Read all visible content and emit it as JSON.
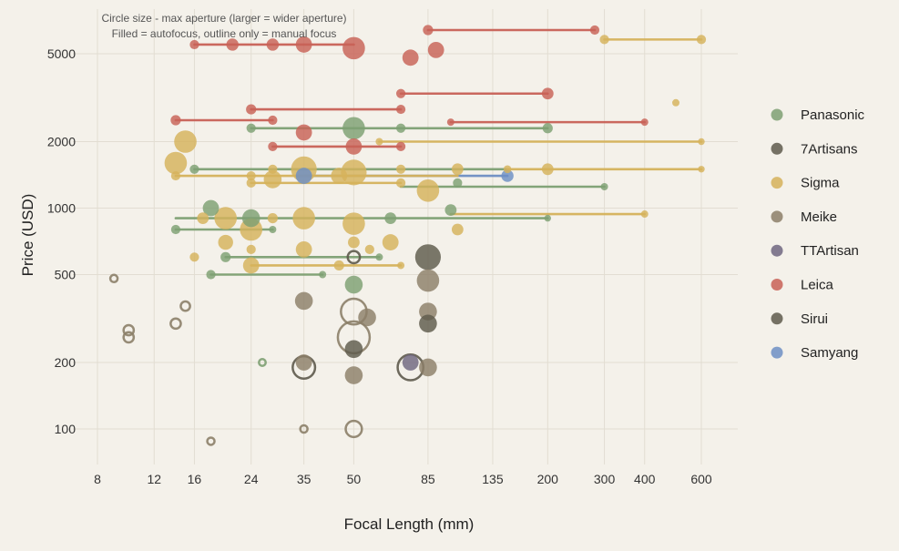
{
  "chart_data": {
    "type": "scatter",
    "title": "",
    "xlabel": "Focal Length (mm)",
    "ylabel": "Price (USD)",
    "x_scale": "log",
    "y_scale": "log",
    "xlim": [
      6.9,
      780
    ],
    "ylim": [
      70,
      8000
    ],
    "x_ticks": [
      8,
      12,
      16,
      24,
      35,
      50,
      85,
      135,
      200,
      300,
      400,
      600
    ],
    "x_tick_labels": [
      "8",
      "12",
      "16",
      "24",
      "35",
      "50",
      "85",
      "135",
      "200",
      "300",
      "400",
      "600"
    ],
    "y_ticks": [
      100,
      200,
      500,
      1000,
      2000,
      5000
    ],
    "y_tick_labels": [
      "100",
      "200",
      "500",
      "1000",
      "2000",
      "5000"
    ],
    "annotation": [
      "Circle size - max aperture (larger = wider aperture)",
      "Filled = autofocus, outline only = manual focus"
    ],
    "legend": {
      "position": "right",
      "entries": [
        {
          "label": "Panasonic",
          "color": "#7ea073"
        },
        {
          "label": "7Artisans",
          "color": "#5e5a4c"
        },
        {
          "label": "Sigma",
          "color": "#d5b25b"
        },
        {
          "label": "Meike",
          "color": "#8c7f69"
        },
        {
          "label": "TTArtisan",
          "color": "#6f6680"
        },
        {
          "label": "Leica",
          "color": "#c86157"
        },
        {
          "label": "Sirui",
          "color": "#5e5a4c"
        },
        {
          "label": "Samyang",
          "color": "#6d8fc4"
        }
      ]
    },
    "zooms": [
      {
        "brand": "Leica",
        "x1": 16,
        "x2": 50,
        "y": 5500
      },
      {
        "brand": "Leica",
        "x1": 85,
        "x2": 280,
        "y": 6400
      },
      {
        "brand": "Sigma",
        "x1": 300,
        "x2": 600,
        "y": 5800
      },
      {
        "brand": "Leica",
        "x1": 70,
        "x2": 200,
        "y": 3300
      },
      {
        "brand": "Leica",
        "x1": 24,
        "x2": 70,
        "y": 2800
      },
      {
        "brand": "Leica",
        "x1": 14,
        "x2": 28,
        "y": 2500
      },
      {
        "brand": "Leica",
        "x1": 100,
        "x2": 400,
        "y": 2450
      },
      {
        "brand": "Panasonic",
        "x1": 24,
        "x2": 200,
        "y": 2300
      },
      {
        "brand": "Sigma",
        "x1": 60,
        "x2": 600,
        "y": 2000
      },
      {
        "brand": "Leica",
        "x1": 28,
        "x2": 70,
        "y": 1900
      },
      {
        "brand": "Panasonic",
        "x1": 16,
        "x2": 150,
        "y": 1500
      },
      {
        "brand": "Sigma",
        "x1": 150,
        "x2": 600,
        "y": 1500
      },
      {
        "brand": "Samyang",
        "x1": 35,
        "x2": 150,
        "y": 1400
      },
      {
        "brand": "Sigma",
        "x1": 14,
        "x2": 105,
        "y": 1400
      },
      {
        "brand": "Sigma",
        "x1": 24,
        "x2": 70,
        "y": 1300
      },
      {
        "brand": "Panasonic",
        "x1": 70,
        "x2": 300,
        "y": 1250
      },
      {
        "brand": "Sigma",
        "x1": 100,
        "x2": 400,
        "y": 940
      },
      {
        "brand": "Panasonic",
        "x1": 14,
        "x2": 200,
        "y": 900
      },
      {
        "brand": "Panasonic",
        "x1": 14,
        "x2": 28,
        "y": 800
      },
      {
        "brand": "Panasonic",
        "x1": 20,
        "x2": 60,
        "y": 600
      },
      {
        "brand": "Sigma",
        "x1": 24,
        "x2": 70,
        "y": 550
      },
      {
        "brand": "Panasonic",
        "x1": 18,
        "x2": 40,
        "y": 500
      }
    ],
    "points": [
      {
        "brand": "Leica",
        "x": 16,
        "y": 5500,
        "ap": 4,
        "af": true
      },
      {
        "brand": "Leica",
        "x": 21,
        "y": 5500,
        "ap": 2.8,
        "af": true
      },
      {
        "brand": "Leica",
        "x": 28,
        "y": 5500,
        "ap": 2.8,
        "af": true
      },
      {
        "brand": "Leica",
        "x": 35,
        "y": 5500,
        "ap": 2,
        "af": true
      },
      {
        "brand": "Leica",
        "x": 50,
        "y": 5300,
        "ap": 1.4,
        "af": true
      },
      {
        "brand": "Leica",
        "x": 75,
        "y": 4800,
        "ap": 2,
        "af": true
      },
      {
        "brand": "Leica",
        "x": 90,
        "y": 5200,
        "ap": 2,
        "af": true
      },
      {
        "brand": "Leica",
        "x": 85,
        "y": 6400,
        "ap": 3.5,
        "af": true
      },
      {
        "brand": "Leica",
        "x": 280,
        "y": 6400,
        "ap": 4,
        "af": true
      },
      {
        "brand": "Sigma",
        "x": 300,
        "y": 5800,
        "ap": 4,
        "af": true
      },
      {
        "brand": "Sigma",
        "x": 600,
        "y": 5800,
        "ap": 4,
        "af": true
      },
      {
        "brand": "Leica",
        "x": 70,
        "y": 3300,
        "ap": 4,
        "af": true
      },
      {
        "brand": "Leica",
        "x": 200,
        "y": 3300,
        "ap": 3,
        "af": true
      },
      {
        "brand": "Sigma",
        "x": 500,
        "y": 3000,
        "ap": 5.6,
        "af": true
      },
      {
        "brand": "Leica",
        "x": 24,
        "y": 2800,
        "ap": 3.5,
        "af": true
      },
      {
        "brand": "Leica",
        "x": 70,
        "y": 2800,
        "ap": 4,
        "af": true
      },
      {
        "brand": "Leica",
        "x": 14,
        "y": 2500,
        "ap": 3.5,
        "af": true
      },
      {
        "brand": "Leica",
        "x": 28,
        "y": 2500,
        "ap": 4,
        "af": true
      },
      {
        "brand": "Leica",
        "x": 100,
        "y": 2450,
        "ap": 5.6,
        "af": true
      },
      {
        "brand": "Leica",
        "x": 400,
        "y": 2450,
        "ap": 5.6,
        "af": true
      },
      {
        "brand": "Panasonic",
        "x": 24,
        "y": 2300,
        "ap": 4,
        "af": true
      },
      {
        "brand": "Panasonic",
        "x": 50,
        "y": 2300,
        "ap": 1.4,
        "af": true
      },
      {
        "brand": "Panasonic",
        "x": 70,
        "y": 2300,
        "ap": 4,
        "af": true
      },
      {
        "brand": "Panasonic",
        "x": 200,
        "y": 2300,
        "ap": 3.5,
        "af": true
      },
      {
        "brand": "Leica",
        "x": 35,
        "y": 2200,
        "ap": 2,
        "af": true
      },
      {
        "brand": "Sigma",
        "x": 15,
        "y": 2000,
        "ap": 1.4,
        "af": true
      },
      {
        "brand": "Sigma",
        "x": 60,
        "y": 2000,
        "ap": 5.6,
        "af": true
      },
      {
        "brand": "Sigma",
        "x": 600,
        "y": 2000,
        "ap": 6.3,
        "af": true
      },
      {
        "brand": "Leica",
        "x": 28,
        "y": 1900,
        "ap": 4,
        "af": true
      },
      {
        "brand": "Leica",
        "x": 50,
        "y": 1900,
        "ap": 2,
        "af": true
      },
      {
        "brand": "Leica",
        "x": 70,
        "y": 1900,
        "ap": 4,
        "af": true
      },
      {
        "brand": "Sigma",
        "x": 14,
        "y": 1600,
        "ap": 1.4,
        "af": true
      },
      {
        "brand": "Sigma",
        "x": 35,
        "y": 1500,
        "ap": 1.2,
        "af": true
      },
      {
        "brand": "Sigma",
        "x": 50,
        "y": 1450,
        "ap": 1.2,
        "af": true
      },
      {
        "brand": "Panasonic",
        "x": 16,
        "y": 1500,
        "ap": 4,
        "af": true
      },
      {
        "brand": "Sigma",
        "x": 28,
        "y": 1500,
        "ap": 4,
        "af": true
      },
      {
        "brand": "Sigma",
        "x": 70,
        "y": 1500,
        "ap": 4,
        "af": true
      },
      {
        "brand": "Sigma",
        "x": 105,
        "y": 1500,
        "ap": 3,
        "af": true
      },
      {
        "brand": "Sigma",
        "x": 150,
        "y": 1500,
        "ap": 5,
        "af": true
      },
      {
        "brand": "Sigma",
        "x": 200,
        "y": 1500,
        "ap": 3,
        "af": true
      },
      {
        "brand": "Sigma",
        "x": 600,
        "y": 1500,
        "ap": 6.3,
        "af": true
      },
      {
        "brand": "Samyang",
        "x": 35,
        "y": 1400,
        "ap": 2,
        "af": true
      },
      {
        "brand": "Samyang",
        "x": 150,
        "y": 1400,
        "ap": 2.8,
        "af": true
      },
      {
        "brand": "Sigma",
        "x": 14,
        "y": 1400,
        "ap": 4,
        "af": true
      },
      {
        "brand": "Sigma",
        "x": 24,
        "y": 1400,
        "ap": 4,
        "af": true
      },
      {
        "brand": "Sigma",
        "x": 28,
        "y": 1350,
        "ap": 1.8,
        "af": true
      },
      {
        "brand": "Sigma",
        "x": 45,
        "y": 1400,
        "ap": 2,
        "af": true
      },
      {
        "brand": "Sigma",
        "x": 24,
        "y": 1300,
        "ap": 4,
        "af": true
      },
      {
        "brand": "Sigma",
        "x": 70,
        "y": 1300,
        "ap": 4,
        "af": true
      },
      {
        "brand": "Panasonic",
        "x": 105,
        "y": 1300,
        "ap": 4,
        "af": true
      },
      {
        "brand": "Panasonic",
        "x": 300,
        "y": 1250,
        "ap": 5.6,
        "af": true
      },
      {
        "brand": "Sigma",
        "x": 85,
        "y": 1200,
        "ap": 1.4,
        "af": true
      },
      {
        "brand": "Panasonic",
        "x": 18,
        "y": 1000,
        "ap": 2,
        "af": true
      },
      {
        "brand": "Panasonic",
        "x": 100,
        "y": 980,
        "ap": 3,
        "af": true
      },
      {
        "brand": "Sigma",
        "x": 400,
        "y": 940,
        "ap": 5.6,
        "af": true
      },
      {
        "brand": "Sigma",
        "x": 17,
        "y": 900,
        "ap": 3,
        "af": true
      },
      {
        "brand": "Sigma",
        "x": 20,
        "y": 900,
        "ap": 1.4,
        "af": true
      },
      {
        "brand": "Panasonic",
        "x": 24,
        "y": 900,
        "ap": 1.8,
        "af": true
      },
      {
        "brand": "Sigma",
        "x": 28,
        "y": 900,
        "ap": 3.5,
        "af": true
      },
      {
        "brand": "Sigma",
        "x": 35,
        "y": 900,
        "ap": 1.4,
        "af": true
      },
      {
        "brand": "Sigma",
        "x": 50,
        "y": 850,
        "ap": 1.4,
        "af": true
      },
      {
        "brand": "Panasonic",
        "x": 65,
        "y": 900,
        "ap": 3,
        "af": true
      },
      {
        "brand": "Panasonic",
        "x": 200,
        "y": 900,
        "ap": 6.3,
        "af": true
      },
      {
        "brand": "Panasonic",
        "x": 14,
        "y": 800,
        "ap": 4,
        "af": true
      },
      {
        "brand": "Panasonic",
        "x": 28,
        "y": 800,
        "ap": 5.6,
        "af": true
      },
      {
        "brand": "Sigma",
        "x": 24,
        "y": 800,
        "ap": 1.4,
        "af": true
      },
      {
        "brand": "Sigma",
        "x": 105,
        "y": 800,
        "ap": 3,
        "af": true
      },
      {
        "brand": "Sigma",
        "x": 20,
        "y": 700,
        "ap": 2.2,
        "af": true
      },
      {
        "brand": "Sigma",
        "x": 50,
        "y": 700,
        "ap": 3,
        "af": true
      },
      {
        "brand": "Sigma",
        "x": 65,
        "y": 700,
        "ap": 2,
        "af": true
      },
      {
        "brand": "Sigma",
        "x": 24,
        "y": 650,
        "ap": 4,
        "af": true
      },
      {
        "brand": "Sigma",
        "x": 35,
        "y": 650,
        "ap": 2,
        "af": true
      },
      {
        "brand": "Sigma",
        "x": 56,
        "y": 650,
        "ap": 4,
        "af": true
      },
      {
        "brand": "Sigma",
        "x": 16,
        "y": 600,
        "ap": 4,
        "af": true
      },
      {
        "brand": "Panasonic",
        "x": 20,
        "y": 600,
        "ap": 3.5,
        "af": true
      },
      {
        "brand": "Panasonic",
        "x": 60,
        "y": 600,
        "ap": 5.6,
        "af": true
      },
      {
        "brand": "7Artisans",
        "x": 50,
        "y": 600,
        "ap": 2.8,
        "af": false
      },
      {
        "brand": "7Artisans",
        "x": 85,
        "y": 600,
        "ap": 1.2,
        "af": true
      },
      {
        "brand": "Sigma",
        "x": 24,
        "y": 550,
        "ap": 2,
        "af": true
      },
      {
        "brand": "Sigma",
        "x": 45,
        "y": 550,
        "ap": 3.5,
        "af": true
      },
      {
        "brand": "Sigma",
        "x": 70,
        "y": 550,
        "ap": 5.6,
        "af": true
      },
      {
        "brand": "Panasonic",
        "x": 18,
        "y": 500,
        "ap": 4,
        "af": true
      },
      {
        "brand": "Panasonic",
        "x": 40,
        "y": 500,
        "ap": 5.6,
        "af": true
      },
      {
        "brand": "Panasonic",
        "x": 50,
        "y": 450,
        "ap": 1.8,
        "af": true
      },
      {
        "brand": "Meike",
        "x": 85,
        "y": 470,
        "ap": 1.4,
        "af": true
      },
      {
        "brand": "Meike",
        "x": 9,
        "y": 480,
        "ap": 5.6,
        "af": false
      },
      {
        "brand": "Meike",
        "x": 35,
        "y": 380,
        "ap": 1.8,
        "af": true
      },
      {
        "brand": "Meike",
        "x": 50,
        "y": 340,
        "ap": 1.2,
        "af": false
      },
      {
        "brand": "Meike",
        "x": 55,
        "y": 320,
        "ap": 1.8,
        "af": true
      },
      {
        "brand": "Meike",
        "x": 85,
        "y": 340,
        "ap": 1.8,
        "af": true
      },
      {
        "brand": "Meike",
        "x": 15,
        "y": 360,
        "ap": 4,
        "af": false
      },
      {
        "brand": "Meike",
        "x": 14,
        "y": 300,
        "ap": 3.5,
        "af": false
      },
      {
        "brand": "7Artisans",
        "x": 85,
        "y": 300,
        "ap": 1.8,
        "af": true
      },
      {
        "brand": "Meike",
        "x": 10,
        "y": 280,
        "ap": 3.5,
        "af": false
      },
      {
        "brand": "Meike",
        "x": 10,
        "y": 260,
        "ap": 3.5,
        "af": false
      },
      {
        "brand": "Meike",
        "x": 50,
        "y": 260,
        "ap": 0.95,
        "af": false
      },
      {
        "brand": "7Artisans",
        "x": 50,
        "y": 230,
        "ap": 1.8,
        "af": true
      },
      {
        "brand": "Panasonic",
        "x": 26,
        "y": 200,
        "ap": 6.3,
        "af": false
      },
      {
        "brand": "7Artisans",
        "x": 35,
        "y": 190,
        "ap": 1.4,
        "af": false
      },
      {
        "brand": "Meike",
        "x": 35,
        "y": 200,
        "ap": 2,
        "af": true
      },
      {
        "brand": "7Artisans",
        "x": 75,
        "y": 190,
        "ap": 1.2,
        "af": false
      },
      {
        "brand": "TTArtisan",
        "x": 75,
        "y": 200,
        "ap": 2,
        "af": true
      },
      {
        "brand": "Meike",
        "x": 85,
        "y": 190,
        "ap": 1.8,
        "af": true
      },
      {
        "brand": "Meike",
        "x": 50,
        "y": 175,
        "ap": 1.8,
        "af": true
      },
      {
        "brand": "Meike",
        "x": 35,
        "y": 100,
        "ap": 5.6,
        "af": false
      },
      {
        "brand": "Meike",
        "x": 50,
        "y": 100,
        "ap": 2,
        "af": false
      },
      {
        "brand": "Meike",
        "x": 18,
        "y": 88,
        "ap": 5.6,
        "af": false
      }
    ]
  }
}
